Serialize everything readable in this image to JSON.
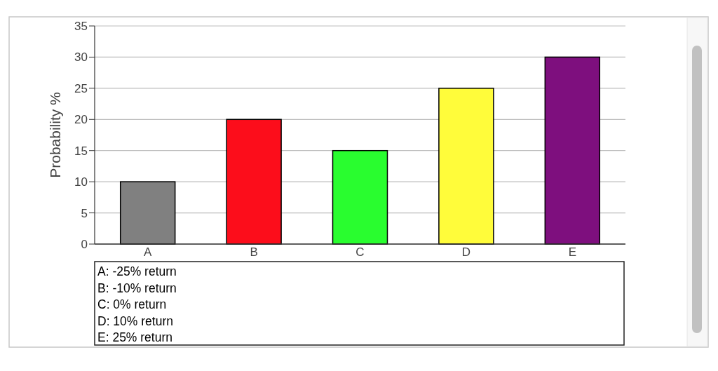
{
  "chart_data": {
    "type": "bar",
    "ylabel": "Probability %",
    "categories": [
      "A",
      "B",
      "C",
      "D",
      "E"
    ],
    "values": [
      10,
      20,
      15,
      25,
      30
    ],
    "colors": [
      "#808080",
      "#fc0d1b",
      "#29fd2f",
      "#fffc3a",
      "#7e0f7e"
    ],
    "ylim": [
      0,
      35
    ],
    "yticks": [
      0,
      5,
      10,
      15,
      20,
      25,
      30,
      35
    ],
    "grid": "y",
    "annotations": [
      "A: -25% return",
      "B: -10% return",
      "C: 0% return",
      "D: 10% return",
      "E: 25% return"
    ]
  }
}
